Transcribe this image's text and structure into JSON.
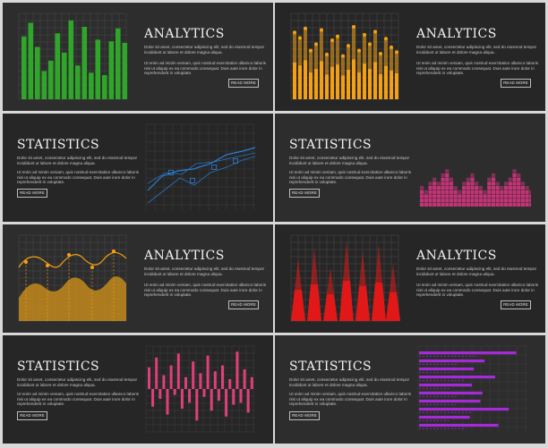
{
  "cards": [
    {
      "title": "ANALYTICS",
      "p1": "Dolor sit amet, consectetur adipiscing elit, sed do eiusmod tempor incididunt ut labore et dolore magna aliqua.",
      "p2": "Ut enim ad minim veniam, quis nostrud exercitation ullamco laboris nisi ut aliquip ex ea commodo consequat. Duis aute irure dolor in reprehenderit in voluptate.",
      "button": "READ MORE"
    },
    {
      "title": "ANALYTICS",
      "p1": "Dolor sit amet, consectetur adipiscing elit, sed do eiusmod tempor incididunt ut labore et dolore magna aliqua.",
      "p2": "Ut enim ad minim veniam, quis nostrud exercitation ullamco laboris nisi ut aliquip ex ea commodo consequat. Duis aute irure dolor in reprehenderit in voluptate.",
      "button": "READ MORE"
    },
    {
      "title": "STATISTICS",
      "p1": "Dolor sit amet, consectetur adipiscing elit, sed do eiusmod tempor incididunt ut labore et dolore magna aliqua.",
      "p2": "Ut enim ad minim veniam, quis nostrud exercitation ullamco laboris nisi ut aliquip ex ea commodo consequat. Duis aute irure dolor in reprehenderit in voluptate.",
      "button": "READ MORE"
    },
    {
      "title": "STATISTICS",
      "p1": "Dolor sit amet, consectetur adipiscing elit, sed do eiusmod tempor incididunt ut labore et dolore magna aliqua.",
      "p2": "Ut enim ad minim veniam, quis nostrud exercitation ullamco laboris nisi ut aliquip ex ea commodo consequat. Duis aute irure dolor in reprehenderit in voluptate.",
      "button": "READ MORE"
    },
    {
      "title": "ANALYTICS",
      "p1": "Dolor sit amet, consectetur adipiscing elit, sed do eiusmod tempor incididunt ut labore et dolore magna aliqua.",
      "p2": "Ut enim ad minim veniam, quis nostrud exercitation ullamco laboris nisi ut aliquip ex ea commodo consequat. Duis aute irure dolor in reprehenderit in voluptate.",
      "button": "READ MORE"
    },
    {
      "title": "ANALYTICS",
      "p1": "Dolor sit amet, consectetur adipiscing elit, sed do eiusmod tempor incididunt ut labore et dolore magna aliqua.",
      "p2": "Ut enim ad minim veniam, quis nostrud exercitation ullamco laboris nisi ut aliquip ex ea commodo consequat. Duis aute irure dolor in reprehenderit in voluptate.",
      "button": "READ MORE"
    },
    {
      "title": "STATISTICS",
      "p1": "Dolor sit amet, consectetur adipiscing elit, sed do eiusmod tempor incididunt ut labore et dolore magna aliqua.",
      "p2": "Ut enim ad minim veniam, quis nostrud exercitation ullamco laboris nisi ut aliquip ex ea commodo consequat. Duis aute irure dolor in reprehenderit in voluptate.",
      "button": "READ MORE"
    },
    {
      "title": "STATISTICS",
      "p1": "Dolor sit amet, consectetur adipiscing elit, sed do eiusmod tempor incididunt ut labore et dolore magna aliqua.",
      "p2": "Ut enim ad minim veniam, quis nostrud exercitation ullamco laboris nisi ut aliquip ex ea commodo consequat. Duis aute irure dolor in reprehenderit in voluptate.",
      "button": "READ MORE"
    }
  ],
  "colors": {
    "green": "#2fa52a",
    "orange": "#f4a012",
    "blue": "#2a7fd6",
    "pink": "#d6357f",
    "gold": "#c38a1d",
    "red": "#e01818",
    "rose": "#e0407a",
    "purple": "#a52ad8",
    "grid": "#4a4a4a"
  },
  "charts": {
    "green_bars": [
      0.78,
      0.95,
      0.65,
      0.35,
      0.48,
      0.82,
      0.58,
      0.98,
      0.42,
      0.9,
      0.33,
      0.74,
      0.3,
      0.72,
      0.88,
      0.7
    ],
    "orange_dots": [
      0.85,
      0.78,
      0.9,
      0.62,
      0.7,
      0.88,
      0.57,
      0.75,
      0.8,
      0.55,
      0.68,
      0.92,
      0.62,
      0.82,
      0.7,
      0.86,
      0.58,
      0.77,
      0.66,
      0.6
    ],
    "pink_grid": [
      5,
      4,
      6,
      7,
      6,
      8,
      9,
      7,
      5,
      4,
      6,
      7,
      8,
      6,
      5,
      4,
      7,
      8,
      6,
      5,
      6,
      7,
      9,
      8,
      6,
      5,
      4,
      5
    ],
    "rose_bars": [
      0.55,
      -0.45,
      0.8,
      -0.25,
      0.35,
      -0.65,
      0.6,
      -0.15,
      0.9,
      -0.5,
      0.3,
      -0.35,
      0.7,
      -0.8,
      0.4,
      -0.2,
      0.85,
      -0.55,
      0.45,
      -0.3,
      0.6,
      -0.7,
      0.25,
      -0.4,
      0.95,
      -0.35,
      0.5,
      -0.6,
      0.3
    ],
    "purple_bars": [
      0.92,
      0.62,
      0.52,
      0.72,
      0.5,
      0.6,
      0.58,
      0.85,
      0.48,
      0.75
    ]
  }
}
